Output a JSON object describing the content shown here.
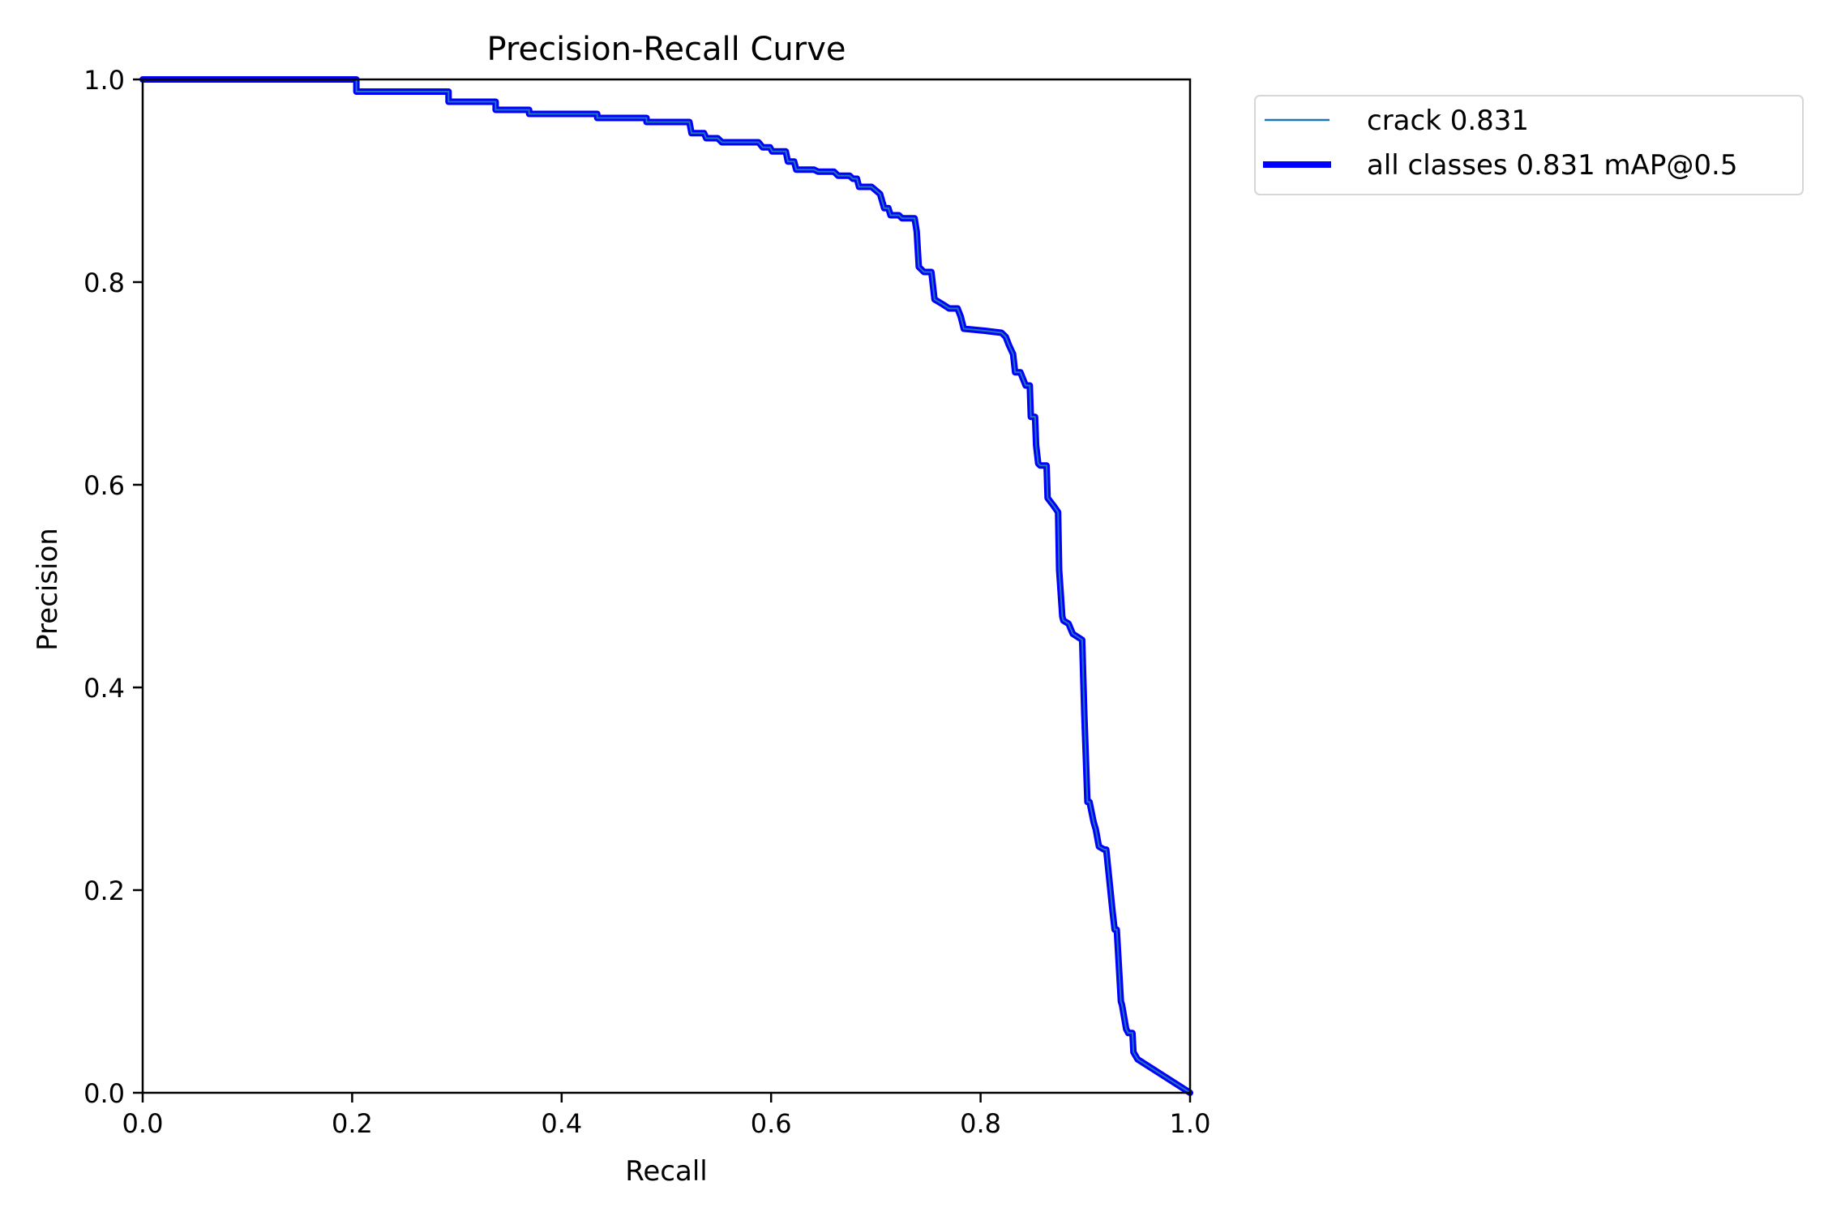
{
  "chart_data": {
    "type": "line",
    "title": "Precision-Recall Curve",
    "xlabel": "Recall",
    "ylabel": "Precision",
    "xlim": [
      0.0,
      1.0
    ],
    "ylim": [
      0.0,
      1.0
    ],
    "grid": false,
    "legend_position": "outside upper right",
    "xticks": [
      "0.0",
      "0.2",
      "0.4",
      "0.6",
      "0.8",
      "1.0"
    ],
    "yticks": [
      "0.0",
      "0.2",
      "0.4",
      "0.6",
      "0.8",
      "1.0"
    ],
    "series": [
      {
        "name": "crack 0.831",
        "color": "#1f77b4",
        "linewidth": 1,
        "x": [
          0.0,
          0.204,
          0.204,
          0.292,
          0.292,
          0.337,
          0.337,
          0.369,
          0.369,
          0.434,
          0.434,
          0.481,
          0.481,
          0.522,
          0.524,
          0.536,
          0.538,
          0.549,
          0.553,
          0.588,
          0.592,
          0.599,
          0.601,
          0.614,
          0.616,
          0.622,
          0.624,
          0.641,
          0.645,
          0.66,
          0.664,
          0.675,
          0.678,
          0.682,
          0.684,
          0.696,
          0.704,
          0.708,
          0.712,
          0.714,
          0.722,
          0.725,
          0.737,
          0.739,
          0.741,
          0.746,
          0.753,
          0.756,
          0.764,
          0.77,
          0.778,
          0.781,
          0.784,
          0.804,
          0.82,
          0.824,
          0.827,
          0.831,
          0.833,
          0.838,
          0.843,
          0.847,
          0.848,
          0.852,
          0.853,
          0.855,
          0.857,
          0.863,
          0.864,
          0.87,
          0.874,
          0.875,
          0.878,
          0.879,
          0.884,
          0.888,
          0.897,
          0.899,
          0.902,
          0.904,
          0.908,
          0.91,
          0.913,
          0.918,
          0.92,
          0.926,
          0.928,
          0.93,
          0.934,
          0.935,
          0.939,
          0.941,
          0.945,
          0.946,
          0.95,
          1.0
        ],
        "y": [
          1.0,
          1.0,
          0.988,
          0.988,
          0.978,
          0.978,
          0.97,
          0.97,
          0.966,
          0.966,
          0.962,
          0.962,
          0.958,
          0.958,
          0.947,
          0.947,
          0.942,
          0.942,
          0.938,
          0.938,
          0.933,
          0.933,
          0.929,
          0.929,
          0.919,
          0.919,
          0.911,
          0.911,
          0.909,
          0.909,
          0.905,
          0.905,
          0.902,
          0.902,
          0.894,
          0.894,
          0.887,
          0.873,
          0.873,
          0.866,
          0.866,
          0.863,
          0.863,
          0.85,
          0.815,
          0.81,
          0.81,
          0.783,
          0.778,
          0.774,
          0.774,
          0.766,
          0.754,
          0.752,
          0.75,
          0.746,
          0.738,
          0.729,
          0.711,
          0.711,
          0.698,
          0.698,
          0.667,
          0.667,
          0.639,
          0.621,
          0.619,
          0.619,
          0.587,
          0.579,
          0.573,
          0.516,
          0.47,
          0.466,
          0.463,
          0.453,
          0.447,
          0.375,
          0.287,
          0.287,
          0.267,
          0.26,
          0.243,
          0.24,
          0.24,
          0.179,
          0.161,
          0.161,
          0.09,
          0.087,
          0.063,
          0.059,
          0.059,
          0.04,
          0.033,
          0.0
        ]
      },
      {
        "name": "all classes 0.831 mAP@0.5",
        "color": "#0000ff",
        "linewidth": 3,
        "same_as": "crack 0.831"
      }
    ]
  },
  "legend": {
    "items": [
      {
        "label": "crack 0.831",
        "color": "#1f77b4"
      },
      {
        "label": "all classes 0.831 mAP@0.5",
        "color": "#0000ff"
      }
    ]
  }
}
